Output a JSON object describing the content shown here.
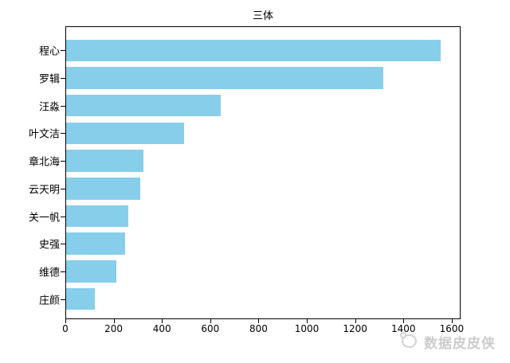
{
  "figure": {
    "title": "三体",
    "watermark": {
      "text": "数据皮皮侠",
      "logo": "mascot-face-icon",
      "color": "#cccccc"
    }
  },
  "chart_data": {
    "type": "bar",
    "orientation": "horizontal",
    "title": "三体",
    "categories": [
      "程心",
      "罗辑",
      "汪淼",
      "叶文洁",
      "章北海",
      "云天明",
      "关一帆",
      "史强",
      "维德",
      "庄颜"
    ],
    "values": [
      1551,
      1313,
      640,
      488,
      320,
      306,
      258,
      244,
      209,
      119
    ],
    "xlabel": "",
    "ylabel": "",
    "xlim": [
      0,
      1633
    ],
    "x_ticks": [
      0,
      200,
      400,
      600,
      800,
      1000,
      1200,
      1400,
      1600
    ],
    "bar_color": "#87CEEB",
    "grid": false,
    "legend_position": "none"
  }
}
